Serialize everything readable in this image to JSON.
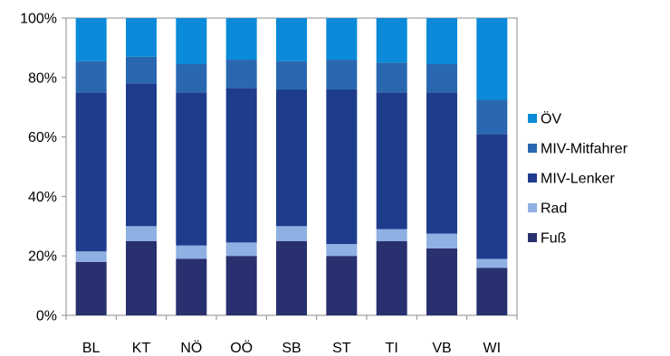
{
  "chart_data": {
    "type": "bar",
    "stacked": true,
    "categories": [
      "BL",
      "KT",
      "NÖ",
      "OÖ",
      "SB",
      "ST",
      "TI",
      "VB",
      "WI"
    ],
    "ylim": [
      0,
      100
    ],
    "yticks": [
      "0%",
      "20%",
      "40%",
      "60%",
      "80%",
      "100%"
    ],
    "ytick_values": [
      0,
      20,
      40,
      60,
      80,
      100
    ],
    "grid": false,
    "legend_position": "right",
    "series": [
      {
        "name": "Fuß",
        "color": "#28306f",
        "values": [
          18,
          25,
          19,
          20,
          25,
          20,
          25,
          22.5,
          16
        ]
      },
      {
        "name": "Rad",
        "color": "#8fb0e2",
        "values": [
          3.5,
          5,
          4.5,
          4.5,
          5,
          4,
          4,
          5,
          3
        ]
      },
      {
        "name": "MIV-Lenker",
        "color": "#1e3c8c",
        "values": [
          53.5,
          48,
          51.5,
          52,
          46,
          52,
          46,
          47.5,
          42
        ]
      },
      {
        "name": "MIV-Mitfahrer",
        "color": "#2968b1",
        "values": [
          10.5,
          9,
          9.5,
          9.5,
          9.5,
          10,
          10,
          9.5,
          11.5
        ]
      },
      {
        "name": "ÖV",
        "color": "#0a8ad8",
        "values": [
          14.5,
          13,
          15.5,
          14,
          14.5,
          14,
          15,
          15.5,
          27.5
        ]
      }
    ]
  }
}
